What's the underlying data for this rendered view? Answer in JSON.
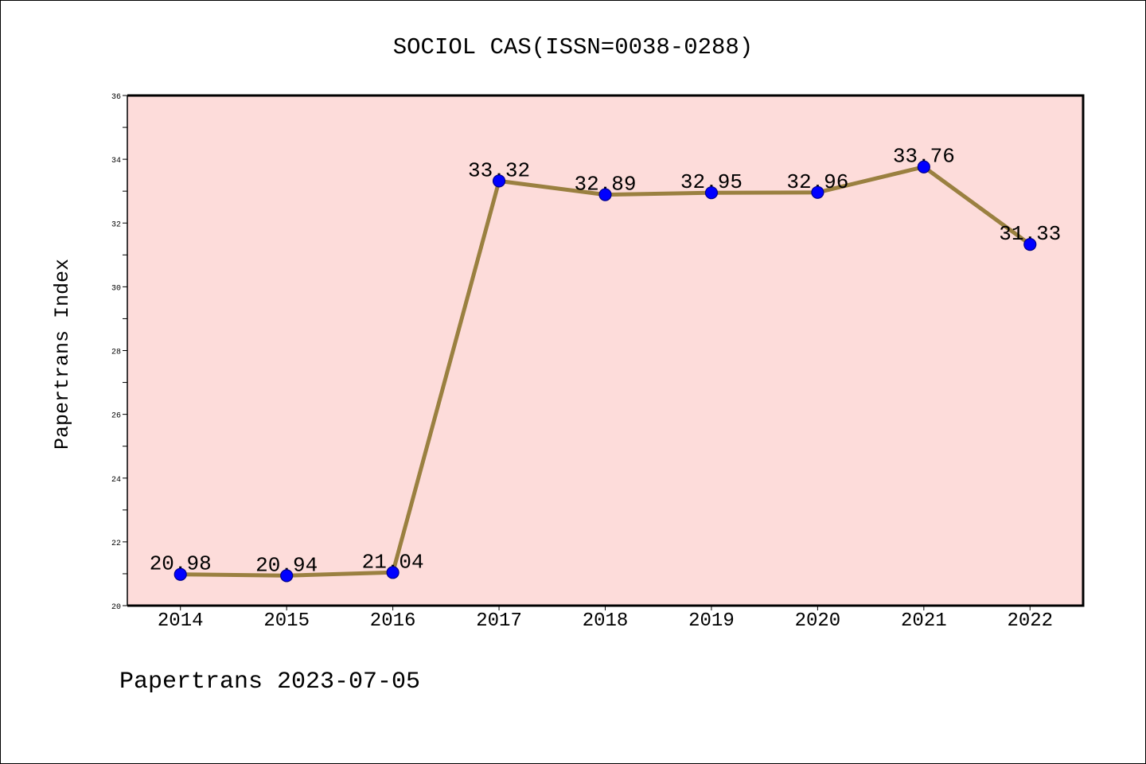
{
  "chart_data": {
    "type": "line",
    "title": "SOCIOL CAS(ISSN=0038-0288)",
    "ylabel": "Papertrans Index",
    "categories": [
      "2014",
      "2015",
      "2016",
      "2017",
      "2018",
      "2019",
      "2020",
      "2021",
      "2022"
    ],
    "series": [
      {
        "values": [
          20.98,
          20.94,
          21.04,
          33.32,
          32.89,
          32.95,
          32.96,
          33.76,
          31.33
        ]
      }
    ],
    "ylim": [
      20,
      36
    ],
    "yticks": [
      20,
      22,
      24,
      26,
      28,
      30,
      32,
      34,
      36
    ],
    "grid": false,
    "legend": "none",
    "data_labels": true,
    "colors": {
      "line": "#9a8040",
      "marker": "#0000ff",
      "marker_edge": "#00008b",
      "plot_background": "#fddcda"
    }
  },
  "footer": "Papertrans 2023-07-05"
}
